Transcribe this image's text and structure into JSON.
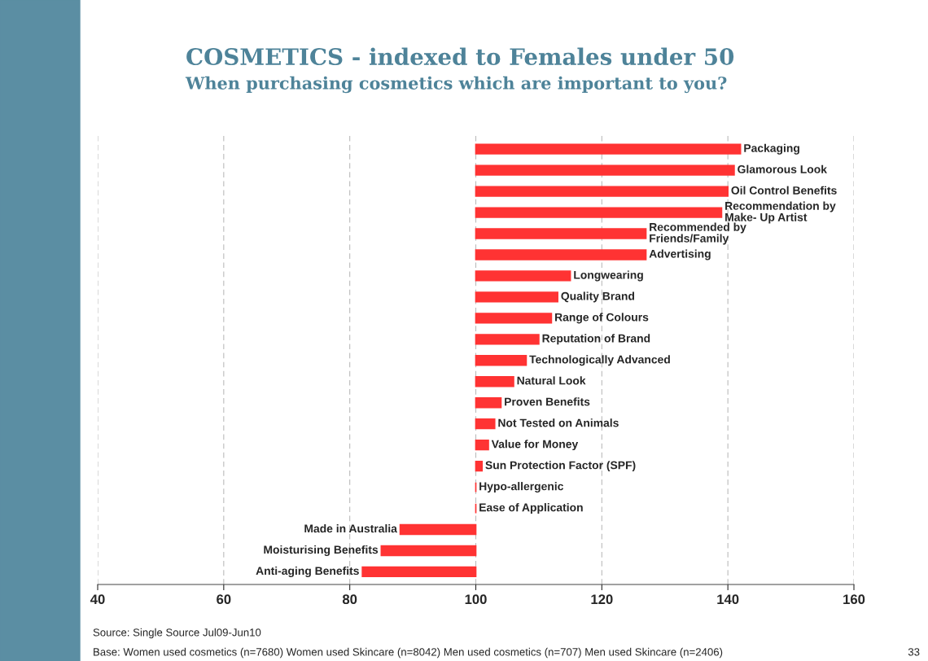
{
  "chart_data": {
    "type": "bar",
    "orientation": "horizontal",
    "title": "COSMETICS - indexed to Females under 50",
    "subtitle": "When purchasing cosmetics which are important to you?",
    "categories": [
      "Packaging",
      "Glamorous Look",
      "Oil Control Benefits",
      "Recommendation by\nMake- Up Artist",
      "Recommended by\nFriends/Family",
      "Advertising",
      "Longwearing",
      "Quality Brand",
      "Range of Colours",
      "Reputation of Brand",
      "Technologically Advanced",
      "Natural Look",
      "Proven Benefits",
      "Not Tested on Animals",
      "Value for Money",
      "Sun Protection Factor (SPF)",
      "Hypo-allergenic",
      "Ease of Application",
      "Made in Australia",
      "Moisturising Benefits",
      "Anti-aging Benefits"
    ],
    "base": [
      100,
      100,
      100,
      100,
      100,
      100,
      100,
      100,
      100,
      100,
      100,
      100,
      100,
      100,
      100,
      100,
      100,
      100,
      100,
      100,
      100
    ],
    "values": [
      42,
      41,
      40,
      39,
      27,
      27,
      15,
      13,
      12,
      10,
      8,
      6,
      4,
      3,
      2,
      1,
      0,
      0,
      -12,
      -15,
      -18
    ],
    "color": "#ff3333",
    "xlim": [
      40,
      160
    ],
    "xticks": [
      40,
      60,
      80,
      100,
      120,
      140,
      160
    ],
    "grid": "x",
    "tick_labels": "x",
    "annotations": [
      "Source: Single Source Jul09-Jun10",
      "Base: Women used cosmetics (n=7680) Women used Skincare (n=8042) Men used cosmetics (n=707) Men used Skincare (n=2406)",
      "33"
    ]
  }
}
